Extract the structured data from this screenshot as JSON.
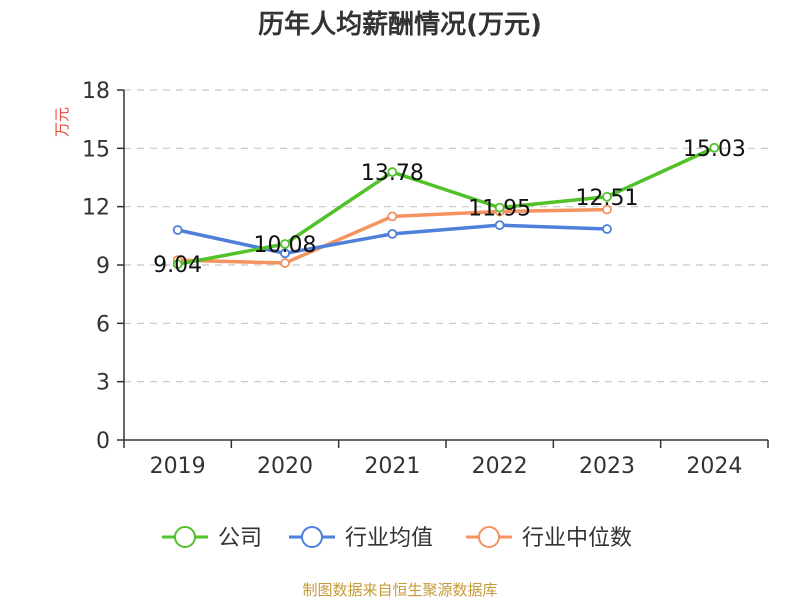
{
  "chart_data": {
    "type": "line",
    "title": "历年人均薪酬情况(万元)",
    "ylabel": "万元",
    "categories": [
      "2019",
      "2020",
      "2021",
      "2022",
      "2023",
      "2024"
    ],
    "ylim": [
      0,
      18
    ],
    "yticks": [
      0,
      3,
      6,
      9,
      12,
      15,
      18
    ],
    "grid": true,
    "legend_position": "bottom",
    "series": [
      {
        "name": "公司",
        "color": "#52c22b",
        "values": [
          9.04,
          10.08,
          13.78,
          11.95,
          12.51,
          15.03
        ],
        "labels": [
          "9.04",
          "10.08",
          "13.78",
          "11.95",
          "12.51",
          "15.03"
        ]
      },
      {
        "name": "行业均值",
        "color": "#4e7fd9",
        "values": [
          10.8,
          9.6,
          10.6,
          11.05,
          10.85,
          null
        ]
      },
      {
        "name": "行业中位数",
        "color": "#f4935f",
        "values": [
          9.25,
          9.1,
          11.5,
          11.75,
          11.85,
          null
        ]
      }
    ],
    "source": "制图数据来自恒生聚源数据库"
  }
}
